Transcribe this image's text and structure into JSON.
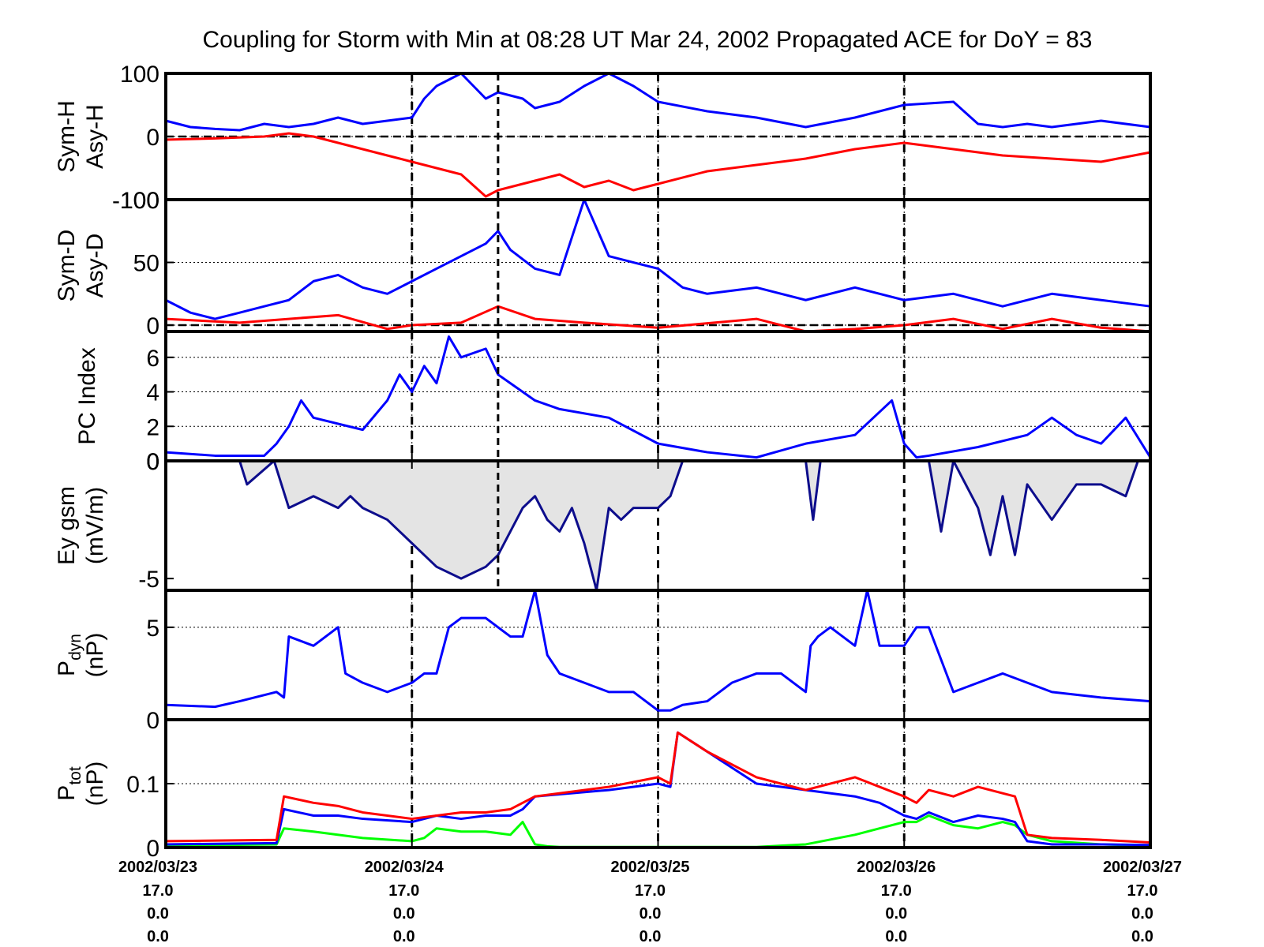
{
  "title": "Coupling for Storm with Min at 08:28 UT Mar 24, 2002  Propagated ACE for DoY = 83",
  "x_tick_rows": [
    [
      "2002/03/23",
      "2002/03/24",
      "2002/03/25",
      "2002/03/26",
      "2002/03/27"
    ],
    [
      "17.0",
      "17.0",
      "17.0",
      "17.0",
      "17.0"
    ],
    [
      "0.0",
      "0.0",
      "0.0",
      "0.0",
      "0.0"
    ],
    [
      "0.0",
      "0.0",
      "0.0",
      "0.0",
      "0.0"
    ]
  ],
  "colors": {
    "sym": "#0000ff",
    "asy_red": "#ff0000",
    "green": "#00ff00",
    "fill": "#e4e4e4",
    "axis": "#000000"
  },
  "chart_data": [
    {
      "id": "symh",
      "type": "line",
      "ylabel_lines": [
        "Sym-H",
        "Asy-H"
      ],
      "x_range": [
        0,
        4
      ],
      "ylim": [
        -100,
        100
      ],
      "yticks": [
        {
          "v": 100,
          "label": "100"
        },
        {
          "v": 0,
          "label": "0"
        },
        {
          "v": -100,
          "label": "-100"
        }
      ],
      "grid": true,
      "zero_line": true,
      "storm_line": true,
      "series": [
        {
          "color": "blue",
          "x": [
            0,
            0.1,
            0.2,
            0.3,
            0.4,
            0.5,
            0.6,
            0.7,
            0.8,
            0.9,
            1.0,
            1.05,
            1.1,
            1.15,
            1.2,
            1.25,
            1.3,
            1.35,
            1.4,
            1.45,
            1.5,
            1.6,
            1.7,
            1.8,
            1.9,
            2.0,
            2.2,
            2.4,
            2.6,
            2.8,
            3.0,
            3.2,
            3.3,
            3.4,
            3.5,
            3.6,
            3.8,
            4.0
          ],
          "y": [
            25,
            15,
            12,
            10,
            20,
            15,
            20,
            30,
            20,
            25,
            30,
            60,
            80,
            90,
            100,
            80,
            60,
            70,
            65,
            60,
            45,
            55,
            80,
            100,
            80,
            55,
            40,
            30,
            15,
            30,
            50,
            55,
            20,
            15,
            20,
            15,
            25,
            15
          ]
        },
        {
          "color": "red",
          "x": [
            0,
            0.2,
            0.4,
            0.5,
            0.6,
            0.7,
            0.8,
            0.9,
            1.0,
            1.1,
            1.2,
            1.3,
            1.35,
            1.4,
            1.5,
            1.6,
            1.7,
            1.8,
            1.9,
            2.0,
            2.2,
            2.4,
            2.6,
            2.8,
            3.0,
            3.2,
            3.4,
            3.6,
            3.8,
            4.0
          ],
          "y": [
            -5,
            -3,
            0,
            5,
            0,
            -10,
            -20,
            -30,
            -40,
            -50,
            -60,
            -95,
            -85,
            -80,
            -70,
            -60,
            -80,
            -70,
            -85,
            -75,
            -55,
            -45,
            -35,
            -20,
            -10,
            -20,
            -30,
            -35,
            -40,
            -25
          ]
        }
      ]
    },
    {
      "id": "symd",
      "type": "line",
      "ylabel_lines": [
        "Sym-D",
        "Asy-D"
      ],
      "x_range": [
        0,
        4
      ],
      "ylim": [
        -5,
        100
      ],
      "yticks": [
        {
          "v": 100,
          "label": "100"
        },
        {
          "v": 50,
          "label": "50"
        },
        {
          "v": 0,
          "label": "0"
        }
      ],
      "grid": true,
      "zero_line": true,
      "storm_line": true,
      "series": [
        {
          "color": "blue",
          "x": [
            0,
            0.1,
            0.2,
            0.3,
            0.4,
            0.5,
            0.6,
            0.7,
            0.8,
            0.9,
            1.0,
            1.1,
            1.2,
            1.3,
            1.35,
            1.4,
            1.5,
            1.6,
            1.65,
            1.7,
            1.8,
            1.9,
            2.0,
            2.1,
            2.2,
            2.4,
            2.6,
            2.8,
            3.0,
            3.2,
            3.4,
            3.6,
            3.8,
            4.0
          ],
          "y": [
            20,
            10,
            5,
            10,
            15,
            20,
            35,
            40,
            30,
            25,
            35,
            45,
            55,
            65,
            75,
            60,
            45,
            40,
            70,
            100,
            55,
            50,
            45,
            30,
            25,
            30,
            20,
            30,
            20,
            25,
            15,
            25,
            20,
            15
          ]
        },
        {
          "color": "red",
          "x": [
            0,
            0.3,
            0.5,
            0.7,
            0.9,
            1.0,
            1.2,
            1.35,
            1.5,
            1.7,
            2.0,
            2.4,
            2.6,
            2.8,
            3.0,
            3.2,
            3.4,
            3.6,
            3.8,
            4.0
          ],
          "y": [
            5,
            2,
            5,
            8,
            -3,
            0,
            2,
            15,
            5,
            2,
            -2,
            5,
            -5,
            -3,
            0,
            5,
            -3,
            5,
            -2,
            -5
          ]
        }
      ]
    },
    {
      "id": "pc",
      "type": "line",
      "ylabel_lines": [
        "PC Index"
      ],
      "x_range": [
        0,
        4
      ],
      "ylim": [
        0,
        7.5
      ],
      "yticks": [
        {
          "v": 6,
          "label": "6"
        },
        {
          "v": 4,
          "label": "4"
        },
        {
          "v": 2,
          "label": "2"
        },
        {
          "v": 0,
          "label": "0"
        }
      ],
      "top_label": "0",
      "grid": true,
      "zero_line": false,
      "storm_line": true,
      "series": [
        {
          "color": "blue",
          "x": [
            0,
            0.2,
            0.4,
            0.45,
            0.5,
            0.55,
            0.6,
            0.8,
            0.9,
            0.95,
            1.0,
            1.05,
            1.1,
            1.15,
            1.2,
            1.3,
            1.35,
            1.4,
            1.5,
            1.6,
            1.8,
            2.0,
            2.2,
            2.4,
            2.6,
            2.8,
            2.95,
            3.0,
            3.05,
            3.1,
            3.3,
            3.5,
            3.6,
            3.7,
            3.8,
            3.9,
            4.0
          ],
          "y": [
            0.5,
            0.3,
            0.3,
            1.0,
            2.0,
            3.5,
            2.5,
            1.8,
            3.5,
            5.0,
            4.0,
            5.5,
            4.5,
            7.2,
            6.0,
            6.5,
            5.0,
            4.5,
            3.5,
            3.0,
            2.5,
            1.0,
            0.5,
            0.2,
            1.0,
            1.5,
            3.5,
            1.0,
            0.2,
            0.3,
            0.8,
            1.5,
            2.5,
            1.5,
            1.0,
            2.5,
            0.2
          ]
        }
      ]
    },
    {
      "id": "ey",
      "type": "line",
      "ylabel_lines": [
        "Ey gsm",
        "(mV/m)"
      ],
      "x_range": [
        0,
        4
      ],
      "ylim": [
        -5.5,
        0
      ],
      "yticks": [
        {
          "v": 0,
          "label": "0"
        },
        {
          "v": -5,
          "label": "-5"
        }
      ],
      "grid": false,
      "zero_line": false,
      "storm_line": true,
      "filled": true,
      "series": [
        {
          "color": "navy",
          "x": [
            0.3,
            0.33,
            0.44,
            0.5,
            0.6,
            0.7,
            0.75,
            0.8,
            0.9,
            1.0,
            1.05,
            1.1,
            1.2,
            1.3,
            1.35,
            1.4,
            1.45,
            1.5,
            1.55,
            1.6,
            1.65,
            1.7,
            1.75,
            1.8,
            1.85,
            1.9,
            2.0,
            2.05,
            2.1
          ],
          "y": [
            0,
            -1.0,
            0,
            -2.0,
            -1.5,
            -2.0,
            -1.5,
            -2.0,
            -2.5,
            -3.5,
            -4.0,
            -4.5,
            -5.0,
            -4.5,
            -4.0,
            -3.0,
            -2.0,
            -1.5,
            -2.5,
            -3.0,
            -2.0,
            -3.5,
            -5.5,
            -2.0,
            -2.5,
            -2.0,
            -2.0,
            -1.5,
            0
          ]
        },
        {
          "color": "navy",
          "x": [
            2.6,
            2.63,
            2.66,
            3.1,
            3.15,
            3.2,
            3.3,
            3.35,
            3.4,
            3.45,
            3.5,
            3.6,
            3.7,
            3.8,
            3.9,
            3.95
          ],
          "y": [
            0,
            -2.5,
            0,
            0,
            -3.0,
            0,
            -2.0,
            -4.0,
            -1.5,
            -4.0,
            -1.0,
            -2.5,
            -1.0,
            -1.0,
            -1.5,
            0
          ]
        }
      ]
    },
    {
      "id": "pdyn",
      "type": "line",
      "ylabel_lines": [
        "P",
        "(nP)"
      ],
      "ylabel_sub": "dyn",
      "x_range": [
        0,
        4
      ],
      "ylim": [
        0,
        7
      ],
      "yticks": [
        {
          "v": 5,
          "label": "5"
        },
        {
          "v": 0,
          "label": "0"
        }
      ],
      "grid": true,
      "zero_line": false,
      "storm_line": false,
      "series": [
        {
          "color": "blue",
          "x": [
            0,
            0.2,
            0.3,
            0.45,
            0.48,
            0.5,
            0.6,
            0.7,
            0.73,
            0.8,
            0.9,
            1.0,
            1.05,
            1.1,
            1.15,
            1.2,
            1.3,
            1.4,
            1.45,
            1.5,
            1.55,
            1.6,
            1.7,
            1.8,
            1.9,
            2.0,
            2.05,
            2.1,
            2.2,
            2.3,
            2.4,
            2.5,
            2.6,
            2.62,
            2.65,
            2.7,
            2.8,
            2.85,
            2.9,
            3.0,
            3.05,
            3.1,
            3.2,
            3.3,
            3.4,
            3.5,
            3.6,
            3.8,
            4.0
          ],
          "y": [
            0.8,
            0.7,
            1.0,
            1.5,
            1.2,
            4.5,
            4.0,
            5.0,
            2.5,
            2.0,
            1.5,
            2.0,
            2.5,
            2.5,
            5.0,
            5.5,
            5.5,
            4.5,
            4.5,
            7.0,
            3.5,
            2.5,
            2.0,
            1.5,
            1.5,
            0.5,
            0.5,
            0.8,
            1.0,
            2.0,
            2.5,
            2.5,
            1.5,
            4.0,
            4.5,
            5.0,
            4.0,
            7.0,
            4.0,
            4.0,
            5.0,
            5.0,
            1.5,
            2.0,
            2.5,
            2.0,
            1.5,
            1.2,
            1.0
          ]
        }
      ]
    },
    {
      "id": "ptot",
      "type": "line",
      "ylabel_lines": [
        "P",
        "(nP)"
      ],
      "ylabel_sub": "tot",
      "x_range": [
        0,
        4
      ],
      "ylim": [
        0,
        0.2
      ],
      "yticks": [
        {
          "v": 0.1,
          "label": "0.1"
        },
        {
          "v": 0,
          "label": "0"
        }
      ],
      "grid": true,
      "zero_line": false,
      "storm_line": false,
      "series": [
        {
          "color": "green",
          "x": [
            0,
            0.45,
            0.48,
            0.6,
            0.8,
            1.0,
            1.05,
            1.1,
            1.2,
            1.3,
            1.4,
            1.45,
            1.5,
            1.55,
            1.6,
            1.8,
            2.0,
            2.2,
            2.4,
            2.6,
            2.8,
            2.9,
            3.0,
            3.05,
            3.1,
            3.2,
            3.3,
            3.4,
            3.45,
            3.5,
            3.6,
            3.8,
            4.0
          ],
          "y": [
            0.003,
            0.005,
            0.03,
            0.025,
            0.015,
            0.01,
            0.015,
            0.03,
            0.025,
            0.025,
            0.02,
            0.04,
            0.005,
            0.002,
            0.001,
            0.001,
            0.001,
            0.001,
            0.001,
            0.005,
            0.02,
            0.03,
            0.04,
            0.04,
            0.05,
            0.035,
            0.03,
            0.04,
            0.035,
            0.02,
            0.01,
            0.005,
            0.003
          ]
        },
        {
          "color": "blue",
          "x": [
            0,
            0.45,
            0.48,
            0.6,
            0.7,
            0.8,
            1.0,
            1.1,
            1.2,
            1.3,
            1.4,
            1.45,
            1.5,
            1.8,
            2.0,
            2.05,
            2.08,
            2.2,
            2.4,
            2.6,
            2.8,
            2.9,
            3.0,
            3.05,
            3.1,
            3.2,
            3.3,
            3.4,
            3.45,
            3.5,
            3.6,
            3.8,
            4.0
          ],
          "y": [
            0.005,
            0.007,
            0.06,
            0.05,
            0.05,
            0.045,
            0.04,
            0.05,
            0.045,
            0.05,
            0.05,
            0.06,
            0.08,
            0.09,
            0.1,
            0.095,
            0.18,
            0.15,
            0.1,
            0.09,
            0.08,
            0.07,
            0.05,
            0.045,
            0.055,
            0.04,
            0.05,
            0.045,
            0.04,
            0.01,
            0.005,
            0.005,
            0.004
          ]
        },
        {
          "color": "red",
          "x": [
            0,
            0.45,
            0.48,
            0.6,
            0.7,
            0.8,
            1.0,
            1.1,
            1.2,
            1.3,
            1.4,
            1.45,
            1.5,
            1.8,
            2.0,
            2.05,
            2.08,
            2.2,
            2.4,
            2.6,
            2.8,
            2.9,
            3.0,
            3.05,
            3.1,
            3.2,
            3.3,
            3.4,
            3.45,
            3.5,
            3.6,
            3.8,
            4.0
          ],
          "y": [
            0.01,
            0.012,
            0.08,
            0.07,
            0.065,
            0.055,
            0.045,
            0.05,
            0.055,
            0.055,
            0.06,
            0.07,
            0.08,
            0.095,
            0.11,
            0.1,
            0.18,
            0.15,
            0.11,
            0.09,
            0.11,
            0.095,
            0.08,
            0.07,
            0.09,
            0.08,
            0.095,
            0.085,
            0.08,
            0.02,
            0.015,
            0.012,
            0.008
          ]
        }
      ]
    }
  ]
}
